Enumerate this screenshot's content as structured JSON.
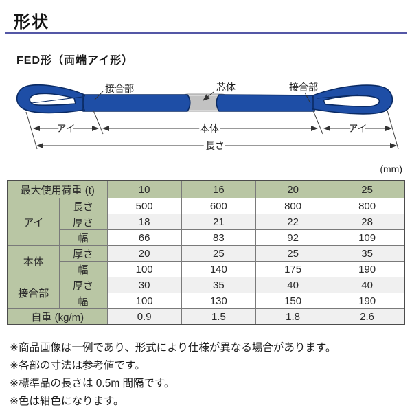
{
  "page": {
    "title": "形状",
    "subtitle": "FED形（両端アイ形）",
    "unit_label": "(mm)"
  },
  "diagram": {
    "labels": {
      "joint_left": "接合部",
      "core": "芯体",
      "joint_right": "接合部",
      "eye_left": "アイ",
      "body": "本体",
      "eye_right": "アイ",
      "length": "長さ"
    }
  },
  "table": {
    "header": {
      "label": "最大使用荷重 (t)",
      "capacities": [
        "10",
        "16",
        "20",
        "25"
      ]
    },
    "groups": [
      {
        "label": "アイ",
        "rows": [
          {
            "label": "長さ",
            "values": [
              "500",
              "600",
              "800",
              "800"
            ]
          },
          {
            "label": "厚さ",
            "values": [
              "18",
              "21",
              "22",
              "28"
            ]
          },
          {
            "label": "幅",
            "values": [
              "66",
              "83",
              "92",
              "109"
            ]
          }
        ]
      },
      {
        "label": "本体",
        "rows": [
          {
            "label": "厚さ",
            "values": [
              "20",
              "25",
              "25",
              "35"
            ]
          },
          {
            "label": "幅",
            "values": [
              "100",
              "140",
              "175",
              "190"
            ]
          }
        ]
      },
      {
        "label": "接合部",
        "rows": [
          {
            "label": "厚さ",
            "values": [
              "30",
              "35",
              "40",
              "40"
            ]
          },
          {
            "label": "幅",
            "values": [
              "100",
              "130",
              "150",
              "190"
            ]
          }
        ]
      },
      {
        "label": "自重 (kg/m)",
        "rows": [
          {
            "label": "",
            "values": [
              "0.9",
              "1.5",
              "1.8",
              "2.6"
            ]
          }
        ]
      }
    ]
  },
  "notes": [
    "※商品画像は一例であり、形式により仕様が異なる場合があります。",
    "※各部の寸法は参考値です。",
    "※標準品の長さは 0.5m 間隔です。",
    "※色は紺色になります。"
  ],
  "colors": {
    "accent_line": "#5457a6",
    "table_header_green": "#b9c6a4",
    "table_row_alt": "#f0f0f0",
    "sling_blue": "#1e4ea6",
    "sling_outline": "#0a2a63",
    "core_gray": "#d8d8d8"
  }
}
